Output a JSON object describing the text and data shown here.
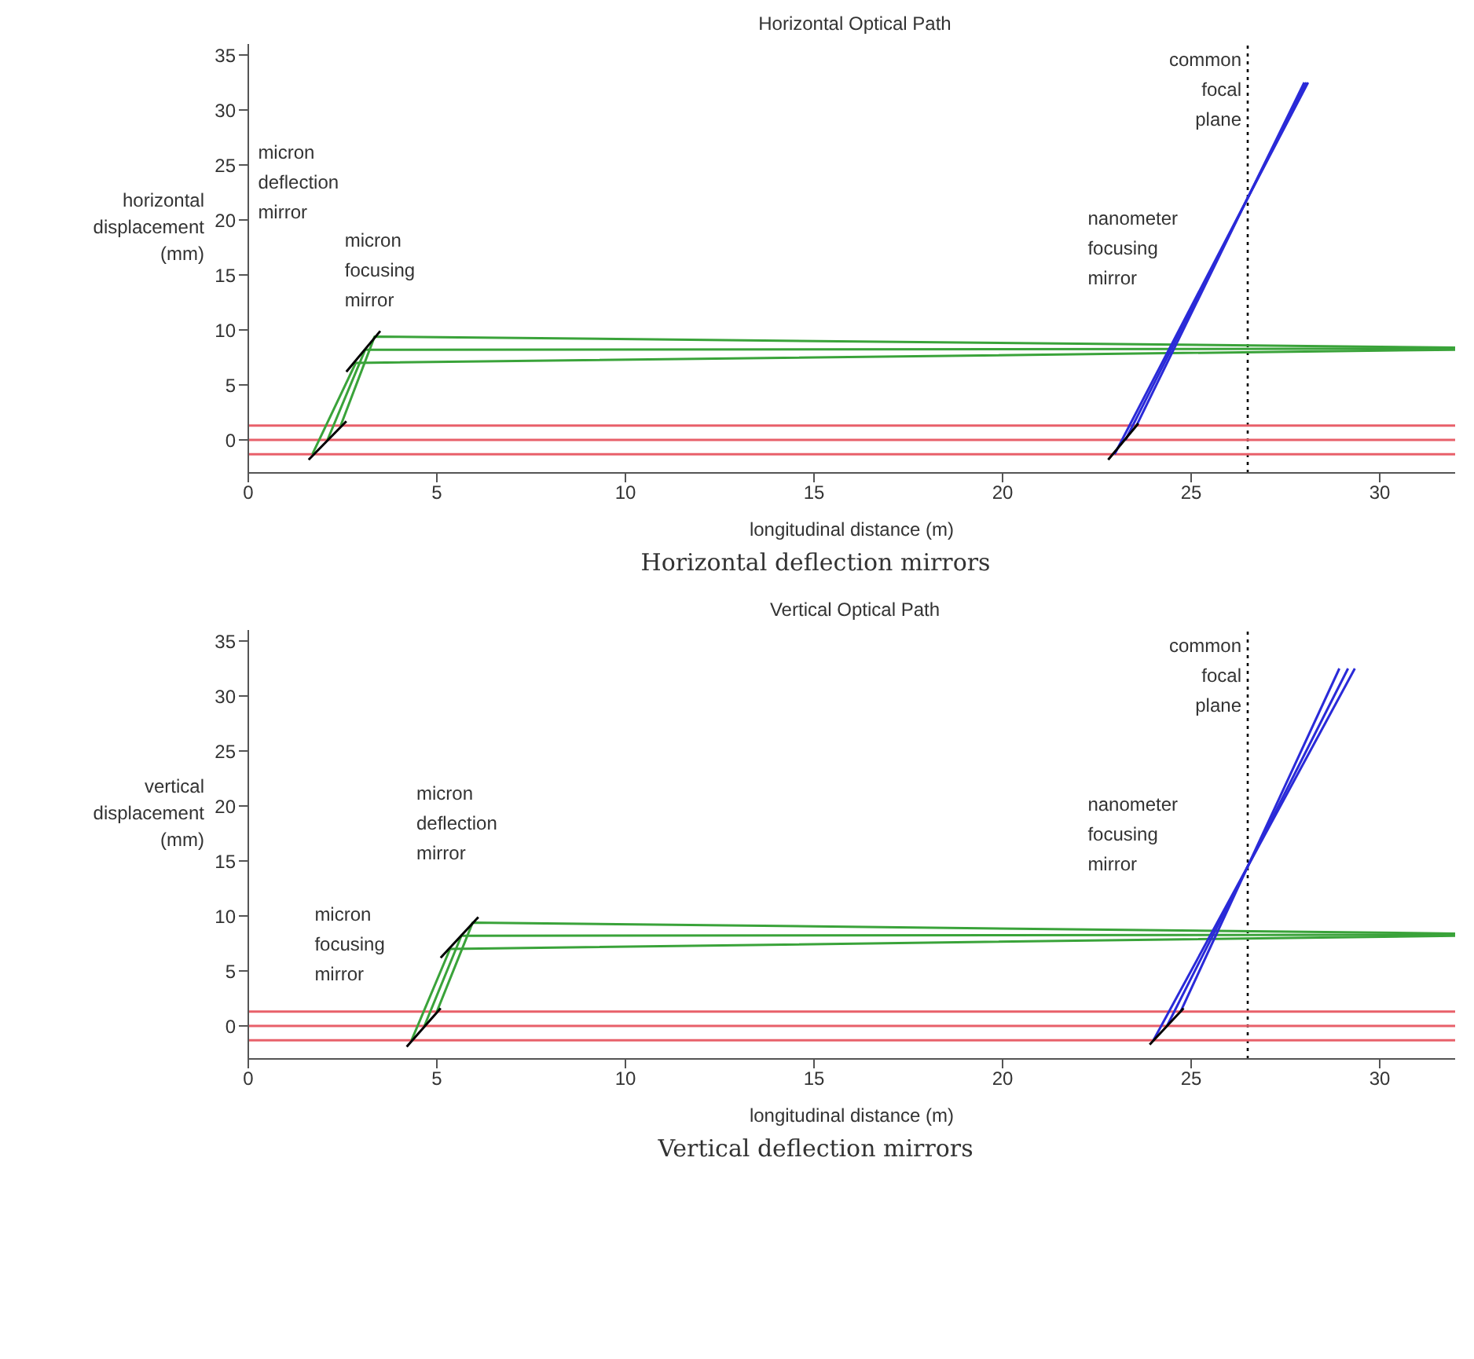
{
  "chart_data": [
    {
      "type": "line",
      "title": "Horizontal Optical Path",
      "xlabel": "longitudinal distance (m)",
      "ylabel": "horizontal displacement (mm)",
      "xlim": [
        0,
        32
      ],
      "ylim": [
        -3,
        36
      ],
      "xticks": [
        0,
        5,
        10,
        15,
        20,
        25,
        30
      ],
      "yticks": [
        0,
        5,
        10,
        15,
        20,
        25,
        30,
        35
      ],
      "series": [
        {
          "color": "#e8606a",
          "x": [
            0,
            32
          ],
          "values": [
            1.3,
            1.3
          ]
        },
        {
          "color": "#e8606a",
          "x": [
            0,
            32
          ],
          "values": [
            0,
            0
          ]
        },
        {
          "color": "#e8606a",
          "x": [
            0,
            32
          ],
          "values": [
            -1.3,
            -1.3
          ]
        },
        {
          "color": "#3aa33a",
          "x": [
            1.7,
            2.85,
            32
          ],
          "values": [
            -1.3,
            7.0,
            8.2
          ]
        },
        {
          "color": "#3aa33a",
          "x": [
            2.1,
            3.1,
            32
          ],
          "values": [
            0,
            8.2,
            8.3
          ]
        },
        {
          "color": "#3aa33a",
          "x": [
            2.45,
            3.35,
            32
          ],
          "values": [
            1.3,
            9.4,
            8.4
          ]
        },
        {
          "color": "#2a2ad8",
          "x": [
            22.97,
            26.5,
            28.1
          ],
          "values": [
            -1.3,
            22,
            32.5
          ]
        },
        {
          "color": "#2a2ad8",
          "x": [
            23.26,
            26.5,
            28.05
          ],
          "values": [
            0,
            22,
            32.5
          ]
        },
        {
          "color": "#2a2ad8",
          "x": [
            23.55,
            26.5,
            28.0
          ],
          "values": [
            1.3,
            22,
            32.5
          ]
        },
        {
          "color": "#000000",
          "x": [
            1.6,
            2.6
          ],
          "values": [
            -1.8,
            1.7
          ]
        },
        {
          "color": "#000000",
          "x": [
            2.6,
            3.5
          ],
          "values": [
            6.2,
            9.9
          ]
        },
        {
          "color": "#000000",
          "x": [
            22.8,
            23.6
          ],
          "values": [
            -1.8,
            1.5
          ]
        }
      ],
      "ref_lines": [
        {
          "axis": "x",
          "value": 26.5,
          "label": "common focal plane",
          "color": "#000000",
          "line_style": "dotted"
        }
      ],
      "annotations": [
        "micron deflection mirror",
        "micron focusing mirror",
        "nanometer focusing mirror",
        "Horizontal deflection mirrors"
      ]
    },
    {
      "type": "line",
      "title": "Vertical Optical Path",
      "xlabel": "longitudinal distance (m)",
      "ylabel": "vertical displacement (mm)",
      "xlim": [
        0,
        32
      ],
      "ylim": [
        -3,
        36
      ],
      "xticks": [
        0,
        5,
        10,
        15,
        20,
        25,
        30
      ],
      "yticks": [
        0,
        5,
        10,
        15,
        20,
        25,
        30,
        35
      ],
      "series": [
        {
          "color": "#e8606a",
          "x": [
            0,
            32
          ],
          "values": [
            1.3,
            1.3
          ]
        },
        {
          "color": "#e8606a",
          "x": [
            0,
            32
          ],
          "values": [
            0,
            0
          ]
        },
        {
          "color": "#e8606a",
          "x": [
            0,
            32
          ],
          "values": [
            -1.3,
            -1.3
          ]
        },
        {
          "color": "#3aa33a",
          "x": [
            4.33,
            5.35,
            32
          ],
          "values": [
            -1.3,
            7.0,
            8.2
          ]
        },
        {
          "color": "#3aa33a",
          "x": [
            4.67,
            5.65,
            32
          ],
          "values": [
            0,
            8.2,
            8.3
          ]
        },
        {
          "color": "#3aa33a",
          "x": [
            5.0,
            5.95,
            32
          ],
          "values": [
            1.3,
            9.4,
            8.4
          ]
        },
        {
          "color": "#2a2ad8",
          "x": [
            24.0,
            26.5,
            29.34
          ],
          "values": [
            -1.3,
            14.5,
            32.5
          ]
        },
        {
          "color": "#2a2ad8",
          "x": [
            24.36,
            26.5,
            29.16
          ],
          "values": [
            0,
            14.5,
            32.5
          ]
        },
        {
          "color": "#2a2ad8",
          "x": [
            24.72,
            26.5,
            28.93
          ],
          "values": [
            1.3,
            14.5,
            32.5
          ]
        },
        {
          "color": "#000000",
          "x": [
            4.2,
            5.1
          ],
          "values": [
            -1.9,
            1.6
          ]
        },
        {
          "color": "#000000",
          "x": [
            5.1,
            6.1
          ],
          "values": [
            6.2,
            9.9
          ]
        },
        {
          "color": "#000000",
          "x": [
            23.9,
            24.8
          ],
          "values": [
            -1.7,
            1.6
          ]
        }
      ],
      "ref_lines": [
        {
          "axis": "x",
          "value": 26.5,
          "label": "common focal plane",
          "color": "#000000",
          "line_style": "dotted"
        }
      ],
      "annotations": [
        "micron deflection mirror",
        "micron focusing mirror",
        "nanometer focusing mirror",
        "Vertical deflection mirrors"
      ]
    }
  ]
}
